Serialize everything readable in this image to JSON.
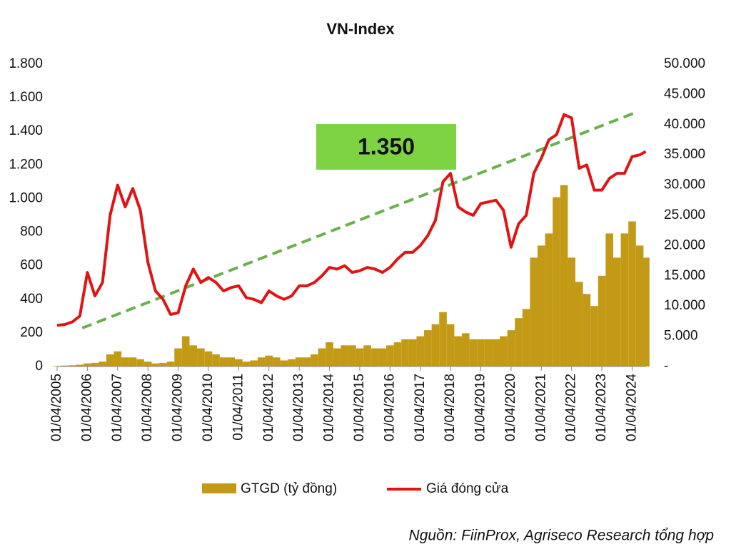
{
  "chart_data": {
    "type": "bar-line",
    "title": "VN-Index",
    "x": [
      2005.25,
      2005.5,
      2005.75,
      2006,
      2006.25,
      2006.5,
      2006.75,
      2007,
      2007.25,
      2007.5,
      2007.75,
      2008,
      2008.25,
      2008.5,
      2008.75,
      2009,
      2009.25,
      2009.5,
      2009.75,
      2010,
      2010.25,
      2010.5,
      2010.75,
      2011,
      2011.25,
      2011.5,
      2011.75,
      2012,
      2012.25,
      2012.5,
      2012.75,
      2013,
      2013.25,
      2013.5,
      2013.75,
      2014,
      2014.25,
      2014.5,
      2014.75,
      2015,
      2015.25,
      2015.5,
      2015.75,
      2016,
      2016.25,
      2016.5,
      2016.75,
      2017,
      2017.25,
      2017.5,
      2017.75,
      2018,
      2018.25,
      2018.5,
      2018.75,
      2019,
      2019.25,
      2019.5,
      2019.75,
      2020,
      2020.25,
      2020.5,
      2020.75,
      2021,
      2021.25,
      2021.5,
      2021.75,
      2022,
      2022.25,
      2022.5,
      2022.75,
      2023,
      2023.25,
      2023.5,
      2023.75,
      2024,
      2024.25,
      2024.5,
      2024.7
    ],
    "series": [
      {
        "name": "GTGD (tỷ đồng)",
        "kind": "bar",
        "axis": "y2",
        "color": "#c29a16",
        "values": [
          100,
          150,
          200,
          300,
          500,
          600,
          800,
          2000,
          2500,
          1500,
          1500,
          1200,
          800,
          500,
          600,
          800,
          3000,
          5000,
          3500,
          3000,
          2500,
          2000,
          1500,
          1500,
          1200,
          800,
          1000,
          1500,
          1800,
          1500,
          1000,
          1200,
          1500,
          1500,
          2000,
          3000,
          4000,
          3000,
          3500,
          3500,
          3000,
          3500,
          3000,
          3000,
          3500,
          4000,
          4500,
          4500,
          5000,
          6000,
          7000,
          9000,
          7000,
          5000,
          5500,
          4500,
          4500,
          4500,
          4500,
          5000,
          6000,
          8000,
          9500,
          18000,
          20000,
          22000,
          28000,
          30000,
          18000,
          14000,
          12000,
          10000,
          15000,
          22000,
          18000,
          22000,
          24000,
          20000,
          18000
        ]
      },
      {
        "name": "Giá đóng cửa",
        "kind": "line",
        "axis": "y",
        "color": "#e01414",
        "values": [
          245,
          250,
          265,
          300,
          560,
          420,
          500,
          900,
          1080,
          950,
          1060,
          930,
          620,
          450,
          400,
          310,
          320,
          480,
          580,
          500,
          530,
          500,
          450,
          470,
          480,
          410,
          400,
          380,
          450,
          420,
          400,
          420,
          480,
          480,
          500,
          540,
          590,
          580,
          600,
          560,
          570,
          590,
          580,
          560,
          590,
          640,
          680,
          680,
          720,
          780,
          870,
          1100,
          1150,
          950,
          920,
          900,
          970,
          980,
          990,
          930,
          710,
          850,
          900,
          1150,
          1240,
          1350,
          1380,
          1500,
          1480,
          1180,
          1200,
          1050,
          1050,
          1120,
          1150,
          1150,
          1250,
          1260,
          1280
        ]
      }
    ],
    "trendline": {
      "x": [
        2006.08,
        2024.42
      ],
      "values": [
        229,
        1516
      ],
      "color": "#6ab04c"
    },
    "annotation": "1.350",
    "xlim": [
      2005.25,
      2024.71
    ],
    "xticks": [
      {
        "value": 2005.25,
        "label": "01/04/2005"
      },
      {
        "value": 2006.25,
        "label": "01/04/2006"
      },
      {
        "value": 2007.25,
        "label": "01/04/2007"
      },
      {
        "value": 2008.25,
        "label": "01/04/2008"
      },
      {
        "value": 2009.25,
        "label": "01/04/2009"
      },
      {
        "value": 2010.25,
        "label": "01/04/2010"
      },
      {
        "value": 2011.25,
        "label": "01/04/2011"
      },
      {
        "value": 2012.25,
        "label": "01/04/2012"
      },
      {
        "value": 2013.25,
        "label": "01/04/2013"
      },
      {
        "value": 2014.25,
        "label": "01/04/2014"
      },
      {
        "value": 2015.25,
        "label": "01/04/2015"
      },
      {
        "value": 2016.25,
        "label": "01/04/2016"
      },
      {
        "value": 2017.25,
        "label": "01/04/2017"
      },
      {
        "value": 2018.25,
        "label": "01/04/2018"
      },
      {
        "value": 2019.25,
        "label": "01/04/2019"
      },
      {
        "value": 2020.25,
        "label": "01/04/2020"
      },
      {
        "value": 2021.25,
        "label": "01/04/2021"
      },
      {
        "value": 2022.25,
        "label": "01/04/2022"
      },
      {
        "value": 2023.25,
        "label": "01/04/2023"
      },
      {
        "value": 2024.25,
        "label": "01/04/2024"
      }
    ],
    "ylim": [
      0,
      1800
    ],
    "yticks": [
      0,
      200,
      400,
      600,
      800,
      {
        "value": 1000,
        "label": "1.000"
      },
      {
        "value": 1200,
        "label": "1.200"
      },
      {
        "value": 1400,
        "label": "1.400"
      },
      {
        "value": 1600,
        "label": "1.600"
      },
      {
        "value": 1800,
        "label": "1.800"
      }
    ],
    "y2lim": [
      0,
      50000
    ],
    "y2ticks": [
      {
        "value": 0,
        "label": "-"
      },
      {
        "value": 5000,
        "label": "5.000"
      },
      {
        "value": 10000,
        "label": "10.000"
      },
      {
        "value": 15000,
        "label": "15.000"
      },
      {
        "value": 20000,
        "label": "20.000"
      },
      {
        "value": 25000,
        "label": "25.000"
      },
      {
        "value": 30000,
        "label": "30.000"
      },
      {
        "value": 35000,
        "label": "35.000"
      },
      {
        "value": 40000,
        "label": "40.000"
      },
      {
        "value": 45000,
        "label": "45.000"
      },
      {
        "value": 50000,
        "label": "50.000"
      }
    ],
    "source": "Nguồn: FiinProx, Agriseco Research tổng hợp"
  }
}
